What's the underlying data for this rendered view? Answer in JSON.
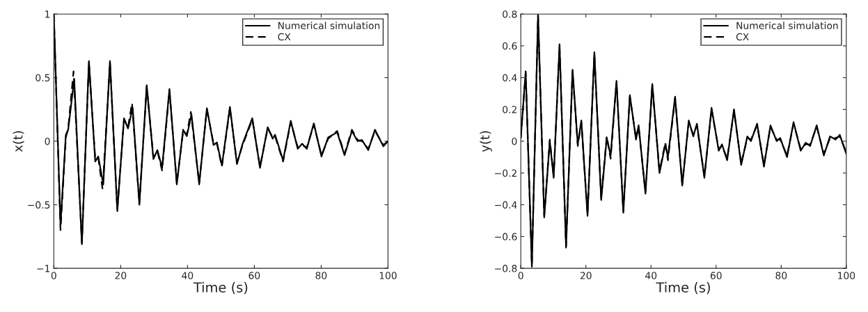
{
  "chart_data": [
    {
      "type": "line",
      "xlabel": "Time (s)",
      "ylabel": "x(t)",
      "xlim": [
        0,
        100
      ],
      "ylim": [
        -1,
        1
      ],
      "xticks": [
        0,
        20,
        40,
        60,
        80,
        100
      ],
      "yticks": [
        -1,
        -0.5,
        0,
        0.5,
        1
      ],
      "grid": false,
      "legend": "top right",
      "series": [
        {
          "name": "Numerical simulation",
          "color": "#000000",
          "line_style": "solid",
          "x": [
            0,
            2.0,
            3.6,
            4.3,
            6.1,
            8.4,
            10.5,
            12.4,
            13.3,
            14.8,
            16.8,
            19.0,
            21.0,
            22.2,
            23.6,
            25.6,
            27.8,
            29.8,
            31.0,
            32.4,
            34.6,
            36.8,
            38.7,
            39.8,
            41.2,
            43.5,
            45.8,
            47.8,
            48.8,
            50.3,
            52.7,
            54.8,
            56.5,
            59.4,
            61.7,
            64.0,
            65.5,
            66.2,
            68.6,
            70.9,
            73.0,
            74.3,
            75.7,
            77.8,
            80.1,
            82.1,
            84.8,
            87.0,
            89.2,
            90.9,
            92.2,
            94.1,
            96.1,
            98.6,
            100
          ],
          "values": [
            1,
            -0.66,
            0.05,
            0.09,
            0.49,
            -0.81,
            0.63,
            -0.16,
            -0.12,
            -0.34,
            0.63,
            -0.55,
            0.18,
            0.1,
            0.26,
            -0.5,
            0.44,
            -0.14,
            -0.07,
            -0.21,
            0.41,
            -0.34,
            0.09,
            0.04,
            0.21,
            -0.34,
            0.26,
            -0.03,
            -0.01,
            -0.19,
            0.27,
            -0.18,
            -0.02,
            0.18,
            -0.21,
            0.11,
            0.02,
            0.05,
            -0.15,
            0.16,
            -0.06,
            -0.02,
            -0.06,
            0.14,
            -0.12,
            0.03,
            0.07,
            -0.11,
            0.08,
            0.0,
            0.01,
            -0.07,
            0.09,
            -0.04,
            0.0
          ]
        },
        {
          "name": "CX",
          "color": "#000000",
          "line_style": "dashed",
          "x": [
            0,
            2.0,
            3.6,
            4.3,
            5.9,
            8.4,
            10.5,
            12.4,
            13.3,
            14.6,
            16.8,
            19.0,
            21.0,
            22.2,
            23.4,
            25.6,
            27.8,
            29.8,
            31.0,
            32.4,
            34.6,
            36.8,
            38.7,
            39.8,
            41.0,
            43.5,
            45.8,
            47.8,
            48.8,
            50.3,
            52.7,
            54.8,
            56.5,
            59.4,
            61.7,
            64.0,
            65.5,
            66.2,
            68.6,
            70.9,
            73.0,
            74.3,
            75.7,
            77.8,
            80.1,
            82.1,
            84.8,
            87.0,
            89.2,
            90.9,
            92.2,
            94.1,
            96.1,
            98.6,
            100
          ],
          "values": [
            1,
            -0.7,
            0.03,
            0.1,
            0.55,
            -0.8,
            0.62,
            -0.14,
            -0.13,
            -0.38,
            0.62,
            -0.54,
            0.17,
            0.11,
            0.3,
            -0.49,
            0.43,
            -0.13,
            -0.08,
            -0.23,
            0.4,
            -0.33,
            0.08,
            0.05,
            0.23,
            -0.33,
            0.25,
            -0.02,
            -0.02,
            -0.2,
            0.26,
            -0.17,
            -0.03,
            0.17,
            -0.2,
            0.1,
            0.03,
            0.04,
            -0.16,
            0.15,
            -0.05,
            -0.03,
            -0.05,
            0.13,
            -0.11,
            0.02,
            0.08,
            -0.1,
            0.09,
            0.01,
            0.0,
            -0.06,
            0.08,
            -0.03,
            0.0
          ]
        }
      ]
    },
    {
      "type": "line",
      "xlabel": "Time (s)",
      "ylabel": "y(t)",
      "xlim": [
        0,
        100
      ],
      "ylim": [
        -0.8,
        0.8
      ],
      "xticks": [
        0,
        20,
        40,
        60,
        80,
        100
      ],
      "yticks": [
        -0.8,
        -0.6,
        -0.4,
        -0.2,
        0,
        0.2,
        0.4,
        0.6,
        0.8
      ],
      "grid": false,
      "legend": "top right",
      "series": [
        {
          "name": "Numerical simulation",
          "color": "#000000",
          "line_style": "solid",
          "x": [
            0,
            1.5,
            3.4,
            5.3,
            7.2,
            8.9,
            10.1,
            11.9,
            13.9,
            15.9,
            17.5,
            18.6,
            20.5,
            22.6,
            24.7,
            26.4,
            27.6,
            29.4,
            31.5,
            33.5,
            35.4,
            36.2,
            38.3,
            40.4,
            42.6,
            44.4,
            45.2,
            47.4,
            49.6,
            51.6,
            53.0,
            54.1,
            56.4,
            58.6,
            60.8,
            61.8,
            63.4,
            65.5,
            67.7,
            69.6,
            70.7,
            72.6,
            74.7,
            76.7,
            78.6,
            79.7,
            81.8,
            83.8,
            86.0,
            87.5,
            88.9,
            90.9,
            93.1,
            95.0,
            96.7,
            98.0,
            100
          ],
          "values": [
            0.02,
            0.44,
            -0.79,
            0.8,
            -0.48,
            0.0,
            -0.23,
            0.61,
            -0.67,
            0.45,
            -0.02,
            0.13,
            -0.47,
            0.56,
            -0.37,
            0.02,
            -0.09,
            0.38,
            -0.45,
            0.29,
            0.01,
            0.1,
            -0.33,
            0.36,
            -0.2,
            -0.02,
            -0.1,
            0.28,
            -0.28,
            0.13,
            0.03,
            0.11,
            -0.23,
            0.21,
            -0.06,
            -0.02,
            -0.12,
            0.2,
            -0.15,
            0.03,
            0.0,
            0.11,
            -0.16,
            0.1,
            0.0,
            0.02,
            -0.1,
            0.12,
            -0.06,
            -0.01,
            -0.03,
            0.1,
            -0.09,
            0.03,
            0.01,
            0.04,
            -0.08
          ]
        },
        {
          "name": "CX",
          "color": "#000000",
          "line_style": "dashed",
          "x": [
            0,
            1.5,
            3.4,
            5.3,
            7.2,
            8.9,
            10.1,
            11.9,
            13.9,
            15.9,
            17.5,
            18.6,
            20.5,
            22.6,
            24.7,
            26.4,
            27.6,
            29.4,
            31.5,
            33.5,
            35.4,
            36.2,
            38.3,
            40.4,
            42.6,
            44.4,
            45.2,
            47.4,
            49.6,
            51.6,
            53.0,
            54.1,
            56.4,
            58.6,
            60.8,
            61.8,
            63.4,
            65.5,
            67.7,
            69.6,
            70.7,
            72.6,
            74.7,
            76.7,
            78.6,
            79.7,
            81.8,
            83.8,
            86.0,
            87.5,
            88.9,
            90.9,
            93.1,
            95.0,
            96.7,
            98.0,
            100
          ],
          "values": [
            0.02,
            0.43,
            -0.78,
            0.79,
            -0.47,
            0.01,
            -0.22,
            0.6,
            -0.66,
            0.44,
            -0.03,
            0.12,
            -0.46,
            0.55,
            -0.36,
            0.03,
            -0.11,
            0.37,
            -0.44,
            0.28,
            0.02,
            0.09,
            -0.32,
            0.35,
            -0.19,
            -0.01,
            -0.12,
            0.27,
            -0.27,
            0.12,
            0.04,
            0.1,
            -0.22,
            0.2,
            -0.05,
            -0.03,
            -0.11,
            0.19,
            -0.14,
            0.02,
            0.01,
            0.1,
            -0.15,
            0.09,
            0.01,
            0.01,
            -0.09,
            0.11,
            -0.05,
            -0.02,
            -0.02,
            0.09,
            -0.08,
            0.02,
            0.02,
            0.03,
            -0.07
          ]
        }
      ]
    }
  ]
}
